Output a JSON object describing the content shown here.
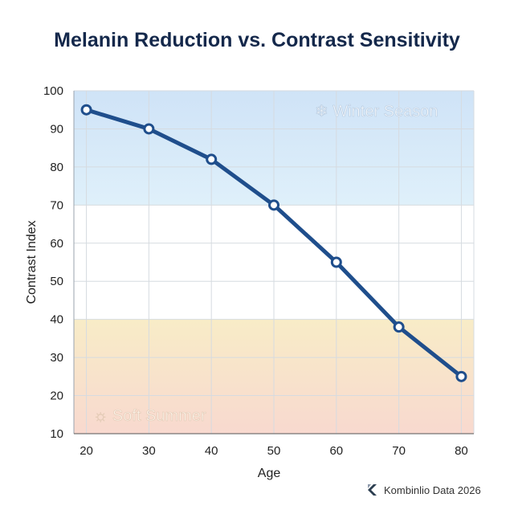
{
  "chart_data": {
    "type": "line",
    "title": "Melanin Reduction vs. Contrast Sensitivity",
    "xlabel": "Age",
    "ylabel": "Contrast Index",
    "x": [
      20,
      30,
      40,
      50,
      60,
      70,
      80
    ],
    "series": [
      {
        "values": [
          95,
          90,
          82,
          70,
          55,
          38,
          25
        ],
        "color": "#1f4e8c"
      }
    ],
    "xlim": [
      18,
      82
    ],
    "ylim": [
      10,
      100
    ],
    "xticks": [
      20,
      30,
      40,
      50,
      60,
      70,
      80
    ],
    "yticks": [
      10,
      20,
      30,
      40,
      50,
      60,
      70,
      80,
      90,
      100
    ],
    "grid": true,
    "bands": [
      {
        "label": "Winter Season",
        "icon": "snowflake-icon",
        "y_range": [
          70,
          100
        ],
        "colors": [
          "#cfe3f7",
          "#dff0fa"
        ]
      },
      {
        "label": "Soft Summer",
        "icon": "sun-icon",
        "y_range": [
          10,
          40
        ],
        "colors": [
          "#f8ecc7",
          "#f8d9cf"
        ]
      }
    ]
  },
  "footer": {
    "text": "Kombinlio Data 2026"
  }
}
